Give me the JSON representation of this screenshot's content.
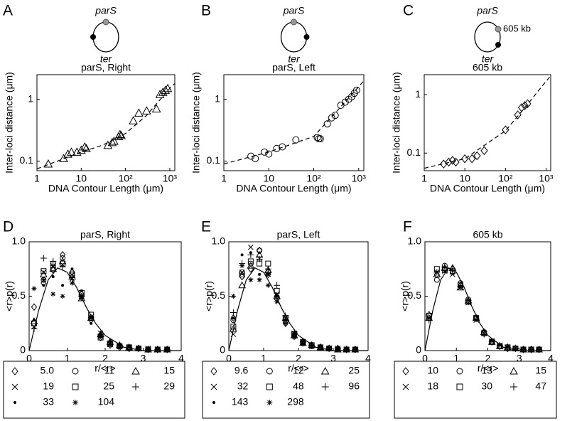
{
  "chart_data": [
    {
      "type": "scatter",
      "panel": "A",
      "title": "parS, Right",
      "diagram": {
        "top": "parS",
        "bottom": "ter"
      },
      "x_label": "DNA Contour Length (μm)",
      "y_label": "Inter-loci distance (μm)",
      "log_scale": true,
      "xlim": [
        1,
        1300
      ],
      "ylim": [
        0.07,
        2.5
      ],
      "xticks": [
        1,
        10,
        {
          "value": 100,
          "label": "10²"
        },
        {
          "value": 1000,
          "label": "10³"
        }
      ],
      "yticks": [
        0.1,
        1
      ],
      "series": [
        {
          "marker": "triangle",
          "color": "#000000",
          "x": [
            1.8,
            4,
            5,
            6,
            8,
            10,
            12,
            13,
            40,
            50,
            55,
            70,
            75,
            80,
            150,
            200,
            300,
            500,
            600,
            700,
            800,
            900
          ],
          "values": [
            0.09,
            0.11,
            0.13,
            0.14,
            0.14,
            0.15,
            0.17,
            0.16,
            0.18,
            0.2,
            0.21,
            0.25,
            0.27,
            0.26,
            0.45,
            0.6,
            0.65,
            0.7,
            1.2,
            1.3,
            1.4,
            1.5
          ]
        }
      ],
      "fit": {
        "style": "dashed",
        "x": [
          1,
          10,
          30,
          100,
          300,
          1000,
          1300
        ],
        "values": [
          0.075,
          0.14,
          0.18,
          0.28,
          0.55,
          1.5,
          1.8
        ]
      }
    },
    {
      "type": "scatter",
      "panel": "B",
      "title": "parS, Left",
      "diagram": {
        "top": "parS",
        "bottom": "ter"
      },
      "x_label": "DNA Contour Length (μm)",
      "y_label": "Inter-loci distance (μm)",
      "log_scale": true,
      "xlim": [
        1,
        1300
      ],
      "ylim": [
        0.07,
        2.5
      ],
      "xticks": [
        1,
        10,
        {
          "value": 100,
          "label": "10²"
        },
        {
          "value": 1000,
          "label": "10³"
        }
      ],
      "yticks": [
        0.1,
        1
      ],
      "series": [
        {
          "marker": "circle",
          "color": "#000000",
          "x": [
            4,
            5,
            8,
            10,
            15,
            20,
            40,
            120,
            130,
            140,
            200,
            250,
            300,
            400,
            500,
            600,
            700,
            800,
            900
          ],
          "values": [
            0.12,
            0.11,
            0.14,
            0.13,
            0.16,
            0.17,
            0.22,
            0.24,
            0.23,
            0.23,
            0.4,
            0.5,
            0.55,
            0.8,
            0.9,
            1.0,
            1.1,
            1.25,
            1.4
          ]
        }
      ],
      "fit": {
        "style": "dashed",
        "x": [
          1,
          10,
          100,
          300,
          1000,
          1300
        ],
        "values": [
          0.09,
          0.14,
          0.25,
          0.6,
          1.6,
          2.0
        ]
      }
    },
    {
      "type": "scatter",
      "panel": "C",
      "title": "605 kb",
      "diagram": {
        "top": "parS",
        "bottom": "ter",
        "side": "605 kb"
      },
      "x_label": "DNA Contour Length (μm)",
      "y_label": "Inter-loci distance (μm)",
      "log_scale": true,
      "xlim": [
        1,
        1300
      ],
      "ylim": [
        0.05,
        2.2
      ],
      "xticks": [
        1,
        10,
        {
          "value": 100,
          "label": "10²"
        },
        {
          "value": 1000,
          "label": "10³"
        }
      ],
      "yticks": [
        0.1,
        1
      ],
      "series": [
        {
          "marker": "diamond",
          "color": "#000000",
          "x": [
            3,
            4,
            5,
            6,
            10,
            15,
            20,
            30,
            100,
            200,
            250,
            300,
            350
          ],
          "values": [
            0.065,
            0.07,
            0.075,
            0.07,
            0.08,
            0.08,
            0.09,
            0.11,
            0.25,
            0.45,
            0.6,
            0.65,
            0.7
          ]
        }
      ],
      "fit": {
        "style": "dashed",
        "x": [
          1,
          10,
          100,
          300,
          1000,
          1300
        ],
        "values": [
          0.055,
          0.08,
          0.24,
          0.6,
          1.7,
          2.1
        ]
      }
    },
    {
      "type": "scatter",
      "panel": "D",
      "title": "parS, Right",
      "x_label": "r/<r>",
      "y_label": "<r>p(r)",
      "xlim": [
        0,
        4
      ],
      "ylim": [
        0,
        1
      ],
      "xticks": [
        0,
        1,
        2,
        3,
        4
      ],
      "yticks": [
        0,
        0.5,
        {
          "value": 1,
          "label": "1.0"
        }
      ],
      "x": [
        0.13,
        0.38,
        0.63,
        0.88,
        1.13,
        1.38,
        1.63,
        1.88,
        2.13,
        2.38,
        2.63,
        2.88,
        3.13,
        3.38,
        3.63
      ],
      "series": [
        {
          "name": "5.0",
          "marker": "diamond",
          "color": "#000000",
          "values": [
            0.4,
            0.62,
            0.74,
            0.88,
            0.72,
            0.52,
            0.28,
            0.12,
            0.05,
            0.03,
            0.02,
            0.02,
            0.01,
            0.01,
            0.01
          ]
        },
        {
          "name": "11",
          "marker": "circle",
          "color": "#000000",
          "values": [
            0.25,
            0.65,
            0.8,
            0.85,
            0.7,
            0.5,
            0.3,
            0.14,
            0.07,
            0.04,
            0.03,
            0.02,
            0.01,
            0.01,
            0.01
          ]
        },
        {
          "name": "15",
          "marker": "triangle",
          "color": "#000000",
          "values": [
            0.27,
            0.7,
            0.75,
            0.82,
            0.68,
            0.48,
            0.3,
            0.15,
            0.08,
            0.05,
            0.03,
            0.02,
            0.01,
            0.01,
            0.01
          ]
        },
        {
          "name": "19",
          "marker": "x",
          "color": "#000000",
          "values": [
            0.22,
            0.72,
            0.78,
            0.79,
            0.66,
            0.5,
            0.31,
            0.16,
            0.07,
            0.04,
            0.03,
            0.02,
            0.02,
            0.01,
            0.01
          ]
        },
        {
          "name": "25",
          "marker": "square",
          "color": "#000000",
          "values": [
            0.25,
            0.73,
            0.76,
            0.8,
            0.7,
            0.53,
            0.33,
            0.12,
            0.06,
            0.04,
            0.03,
            0.02,
            0.01,
            0.01,
            0.01
          ]
        },
        {
          "name": "29",
          "marker": "plus",
          "color": "#000000",
          "values": [
            0.2,
            0.85,
            0.82,
            0.77,
            0.67,
            0.5,
            0.3,
            0.15,
            0.08,
            0.05,
            0.03,
            0.02,
            0.01,
            0.01,
            0.01
          ]
        },
        {
          "name": "33",
          "marker": "dot",
          "color": "#000000",
          "values": [
            0.28,
            0.6,
            0.68,
            0.6,
            0.75,
            0.55,
            0.25,
            0.14,
            0.09,
            0.05,
            0.03,
            0.02,
            0.01,
            0.01,
            0.01
          ]
        },
        {
          "name": "104",
          "marker": "asterisk",
          "color": "#000000",
          "values": [
            0.57,
            0.65,
            0.52,
            0.5,
            0.62,
            0.48,
            0.3,
            0.13,
            0.06,
            0.04,
            0.03,
            0.02,
            0.01,
            0.01,
            0.01
          ]
        }
      ],
      "fit": {
        "style": "solid",
        "x": [
          0,
          0.25,
          0.5,
          0.75,
          1,
          1.25,
          1.5,
          1.75,
          2,
          2.5,
          3,
          3.5,
          4
        ],
        "values": [
          0,
          0.37,
          0.65,
          0.76,
          0.72,
          0.58,
          0.4,
          0.25,
          0.14,
          0.03,
          0,
          0,
          0
        ]
      }
    },
    {
      "type": "scatter",
      "panel": "E",
      "title": "parS, Left",
      "x_label": "r/<r>",
      "y_label": "<r>p(r)",
      "xlim": [
        0,
        4
      ],
      "ylim": [
        0,
        1
      ],
      "xticks": [
        0,
        1,
        2,
        3,
        4
      ],
      "yticks": [
        0,
        0.5,
        {
          "value": 1,
          "label": "1.0"
        }
      ],
      "x": [
        0.13,
        0.38,
        0.63,
        0.88,
        1.13,
        1.38,
        1.63,
        1.88,
        2.13,
        2.38,
        2.63,
        2.88,
        3.13,
        3.38,
        3.63
      ],
      "series": [
        {
          "name": "9.6",
          "marker": "diamond",
          "color": "#000000",
          "values": [
            0.3,
            0.68,
            0.75,
            0.92,
            0.7,
            0.5,
            0.25,
            0.15,
            0.08,
            0.05,
            0.03,
            0.02,
            0.02,
            0.01,
            0.01
          ]
        },
        {
          "name": "12",
          "marker": "circle",
          "color": "#000000",
          "values": [
            0.28,
            0.72,
            0.8,
            0.92,
            0.72,
            0.48,
            0.27,
            0.14,
            0.07,
            0.04,
            0.03,
            0.02,
            0.01,
            0.01,
            0.01
          ]
        },
        {
          "name": "25",
          "marker": "triangle",
          "color": "#000000",
          "values": [
            0.2,
            0.6,
            0.78,
            0.88,
            0.74,
            0.5,
            0.3,
            0.14,
            0.07,
            0.05,
            0.03,
            0.02,
            0.01,
            0.01,
            0.01
          ]
        },
        {
          "name": "32",
          "marker": "x",
          "color": "#000000",
          "values": [
            0.15,
            0.72,
            0.95,
            0.85,
            0.7,
            0.52,
            0.3,
            0.16,
            0.08,
            0.04,
            0.03,
            0.02,
            0.02,
            0.01,
            0.01
          ]
        },
        {
          "name": "48",
          "marker": "square",
          "color": "#000000",
          "values": [
            0.22,
            0.7,
            0.82,
            0.8,
            0.8,
            0.55,
            0.3,
            0.15,
            0.08,
            0.05,
            0.03,
            0.02,
            0.01,
            0.01,
            0.01
          ]
        },
        {
          "name": "96",
          "marker": "plus",
          "color": "#000000",
          "values": [
            0.35,
            0.8,
            0.88,
            0.84,
            0.75,
            0.6,
            0.32,
            0.17,
            0.08,
            0.05,
            0.03,
            0.02,
            0.02,
            0.01,
            0.01
          ]
        },
        {
          "name": "143",
          "marker": "dot",
          "color": "#000000",
          "values": [
            0.3,
            0.88,
            0.9,
            0.7,
            0.7,
            0.5,
            0.28,
            0.14,
            0.06,
            0.04,
            0.03,
            0.02,
            0.01,
            0.01,
            0.01
          ]
        },
        {
          "name": "298",
          "marker": "asterisk",
          "color": "#000000",
          "values": [
            0.5,
            0.78,
            0.65,
            0.65,
            0.6,
            0.45,
            0.25,
            0.12,
            0.06,
            0.04,
            0.03,
            0.02,
            0.01,
            0.01,
            0.01
          ]
        }
      ],
      "fit": {
        "style": "solid",
        "x": [
          0,
          0.25,
          0.5,
          0.75,
          1,
          1.25,
          1.5,
          1.75,
          2,
          2.5,
          3,
          3.5,
          4
        ],
        "values": [
          0,
          0.37,
          0.65,
          0.76,
          0.72,
          0.58,
          0.4,
          0.25,
          0.14,
          0.03,
          0,
          0,
          0
        ]
      }
    },
    {
      "type": "scatter",
      "panel": "F",
      "title": "605 kb",
      "x_label": "r/<r>",
      "y_label": "<r>p(r)",
      "xlim": [
        0,
        4
      ],
      "ylim": [
        0,
        1
      ],
      "xticks": [
        0,
        1,
        2,
        3,
        4
      ],
      "yticks": [
        0,
        0.5,
        {
          "value": 1,
          "label": "1.0"
        }
      ],
      "x": [
        0.13,
        0.38,
        0.63,
        0.88,
        1.13,
        1.38,
        1.63,
        1.88,
        2.13,
        2.38,
        2.63,
        2.88,
        3.13,
        3.38,
        3.63
      ],
      "series": [
        {
          "name": "10",
          "marker": "diamond",
          "color": "#000000",
          "values": [
            0.33,
            0.7,
            0.75,
            0.75,
            0.6,
            0.45,
            0.3,
            0.16,
            0.08,
            0.04,
            0.02,
            0.02,
            0.01,
            0.01,
            0.01
          ]
        },
        {
          "name": "13",
          "marker": "circle",
          "color": "#000000",
          "values": [
            0.32,
            0.65,
            0.78,
            0.72,
            0.62,
            0.47,
            0.3,
            0.17,
            0.08,
            0.04,
            0.02,
            0.02,
            0.01,
            0.01,
            0.01
          ]
        },
        {
          "name": "15",
          "marker": "triangle",
          "color": "#000000",
          "values": [
            0.3,
            0.7,
            0.76,
            0.76,
            0.58,
            0.46,
            0.3,
            0.17,
            0.08,
            0.04,
            0.03,
            0.02,
            0.01,
            0.01,
            0.01
          ]
        },
        {
          "name": "18",
          "marker": "x",
          "color": "#000000",
          "values": [
            0.3,
            0.72,
            0.73,
            0.7,
            0.58,
            0.44,
            0.28,
            0.16,
            0.09,
            0.05,
            0.03,
            0.02,
            0.01,
            0.01,
            0.01
          ]
        },
        {
          "name": "30",
          "marker": "square",
          "color": "#000000",
          "values": [
            0.32,
            0.75,
            0.74,
            0.73,
            0.6,
            0.45,
            0.3,
            0.16,
            0.08,
            0.04,
            0.03,
            0.02,
            0.01,
            0.01,
            0.01
          ]
        },
        {
          "name": "47",
          "marker": "plus",
          "color": "#000000",
          "values": [
            0.28,
            0.72,
            0.77,
            0.74,
            0.59,
            0.46,
            0.29,
            0.15,
            0.08,
            0.05,
            0.03,
            0.02,
            0.01,
            0.01,
            0.01
          ]
        }
      ],
      "fit": {
        "style": "solid",
        "x": [
          0,
          0.25,
          0.5,
          0.75,
          1,
          1.25,
          1.5,
          1.75,
          2,
          2.5,
          3,
          3.5,
          4
        ],
        "values": [
          0,
          0.37,
          0.65,
          0.76,
          0.72,
          0.58,
          0.4,
          0.25,
          0.14,
          0.03,
          0,
          0,
          0
        ]
      }
    }
  ]
}
